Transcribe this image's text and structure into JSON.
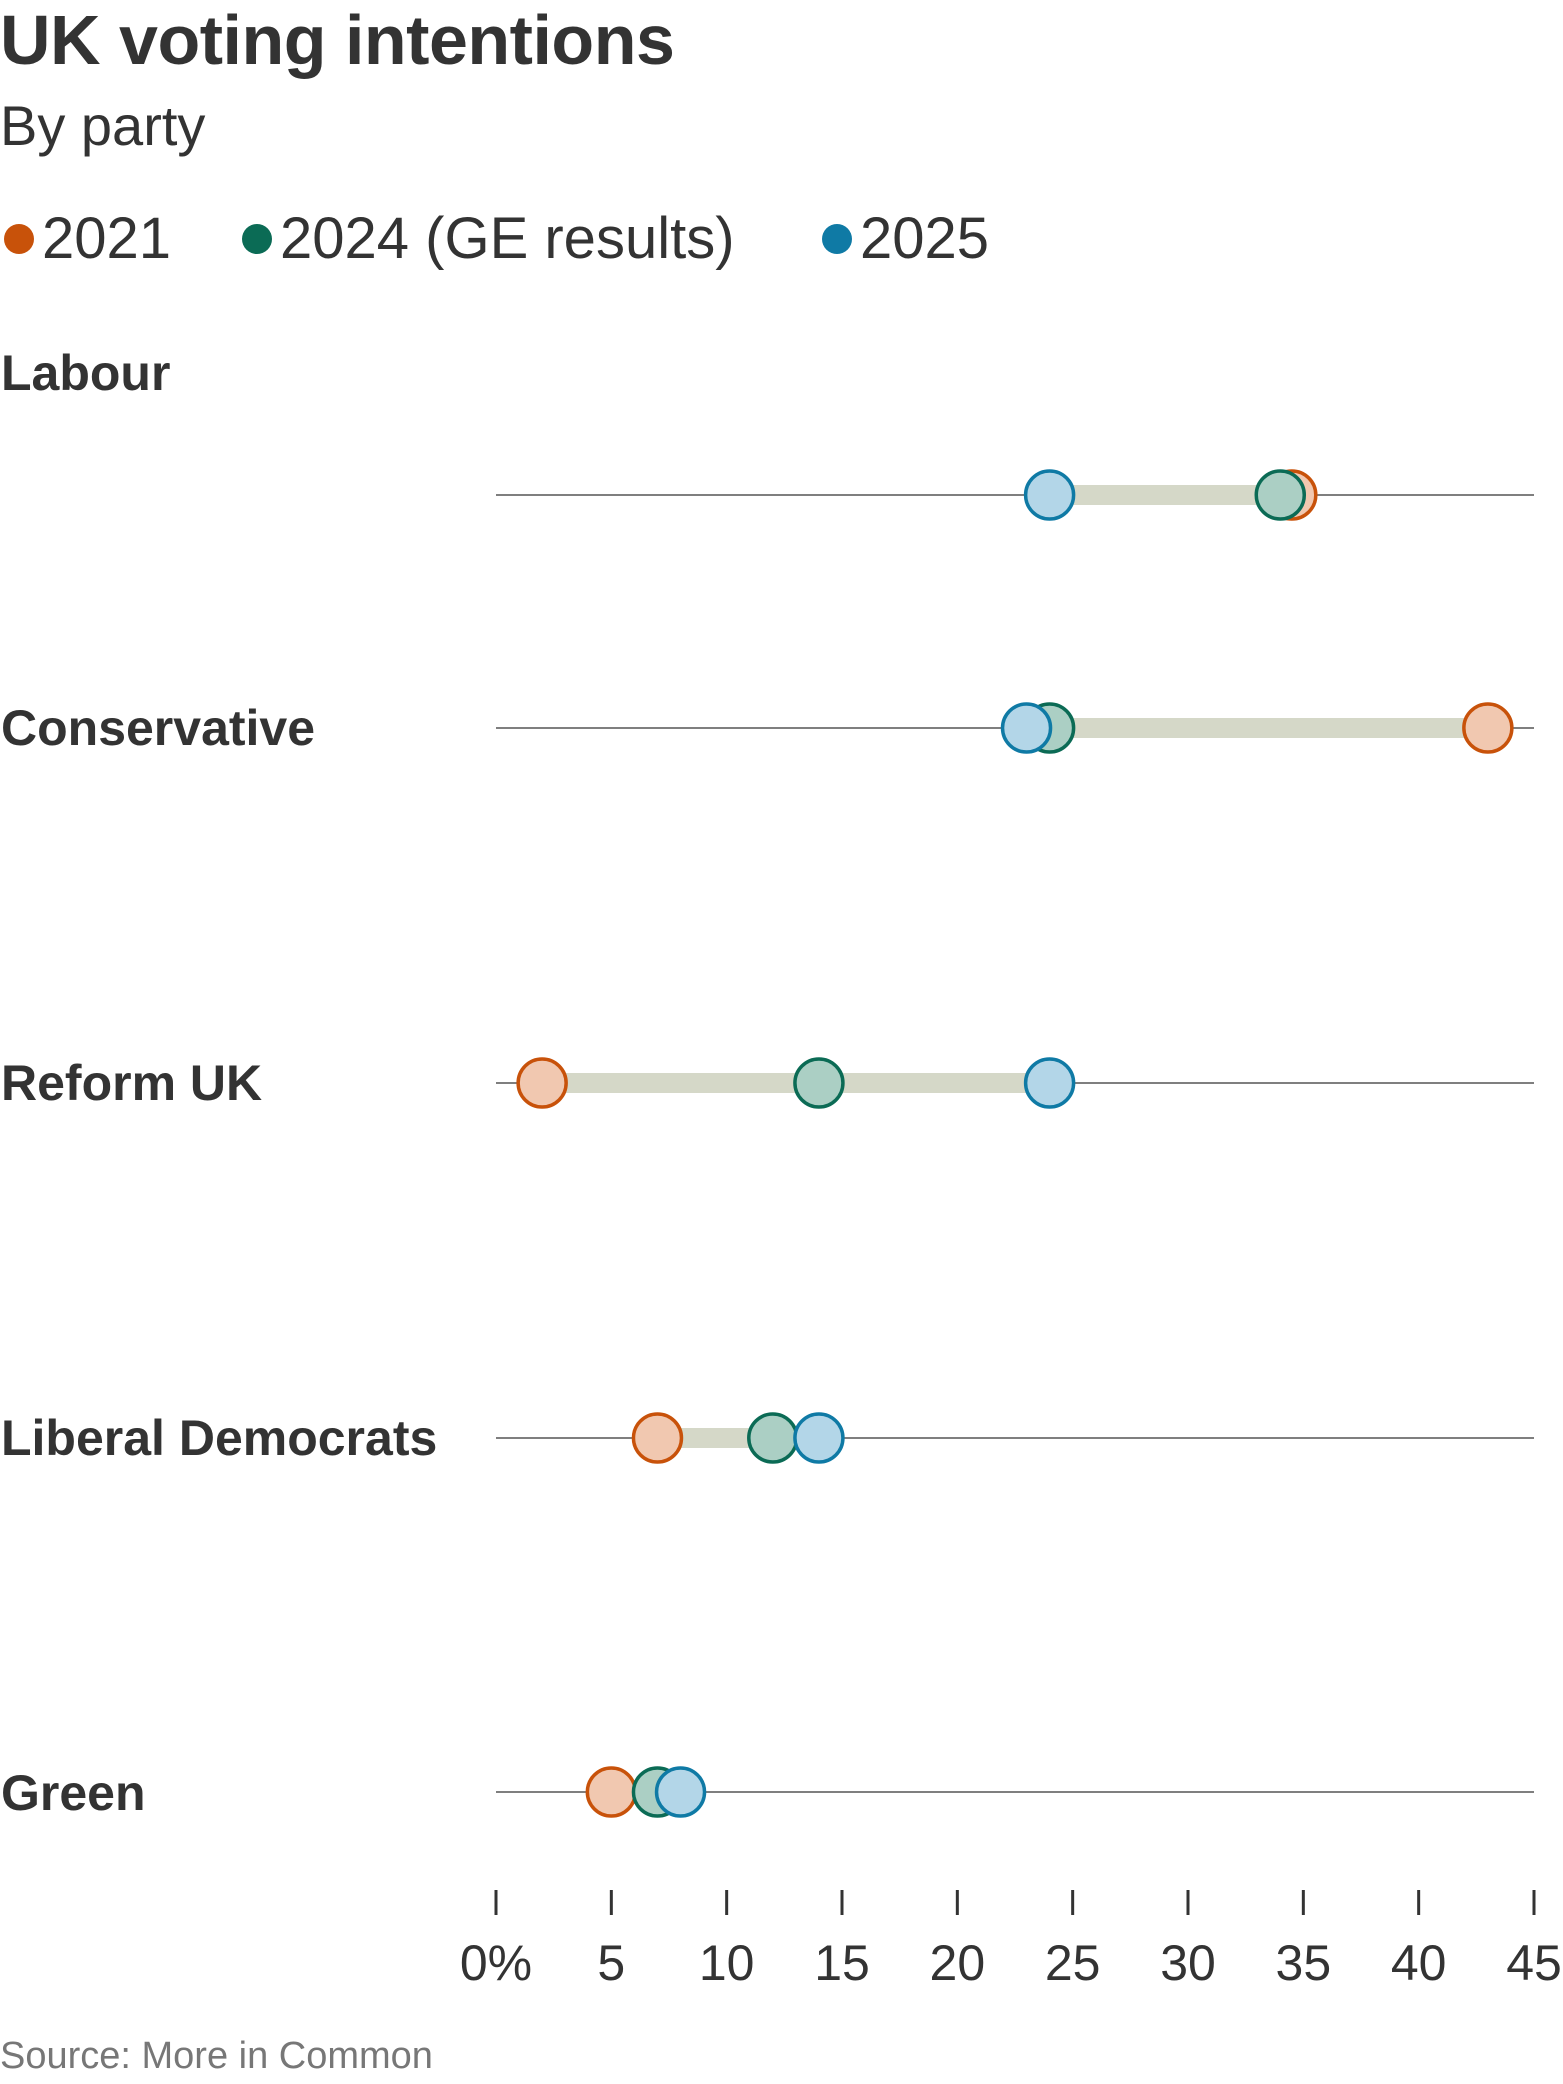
{
  "header": {
    "title": "UK voting intentions",
    "subtitle": "By party"
  },
  "legend": [
    {
      "label": "2021",
      "color": "#c8520a"
    },
    {
      "label": "2024 (GE results)",
      "color": "#0b6b55"
    },
    {
      "label": "2025",
      "color": "#0f7aa5"
    }
  ],
  "chart_data": {
    "type": "dot",
    "title": "UK voting intentions",
    "subtitle": "By party",
    "categories": [
      "Labour",
      "Conservative",
      "Reform UK",
      "Liberal Democrats",
      "Green"
    ],
    "series": [
      {
        "name": "2021",
        "values": [
          34.5,
          43,
          2,
          7,
          5
        ],
        "stroke": "#c8520a",
        "fill": "#f1c8b0"
      },
      {
        "name": "2024 (GE results)",
        "values": [
          34,
          24,
          14,
          12,
          7
        ],
        "stroke": "#0b6b55",
        "fill": "#abcfc4"
      },
      {
        "name": "2025",
        "values": [
          24,
          23,
          24,
          14,
          8
        ],
        "stroke": "#0f7aa5",
        "fill": "#b3d6e8"
      }
    ],
    "xlim": [
      0,
      45
    ],
    "xticks": [
      0,
      5,
      10,
      15,
      20,
      25,
      30,
      35,
      40,
      45
    ],
    "xtick_labels": [
      "0%",
      "5",
      "10",
      "15",
      "20",
      "25",
      "30",
      "35",
      "40",
      "45"
    ],
    "range_bar_color": "#d5d8c8",
    "gridline_color": "#555555"
  },
  "footer": {
    "source": "Source: More in Common"
  }
}
